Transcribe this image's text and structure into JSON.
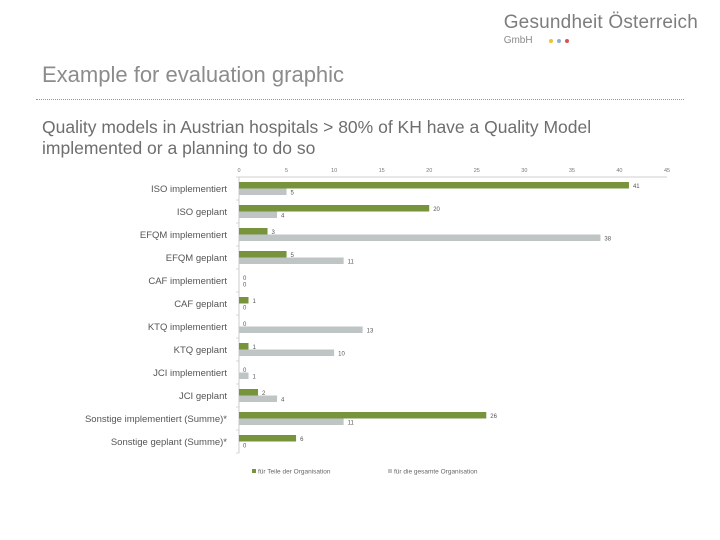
{
  "logo": {
    "name": "Gesundheit Österreich",
    "sub": "GmbH",
    "dot_colors": [
      "#f2c12e",
      "#8ab0d8",
      "#d9534f"
    ]
  },
  "slide": {
    "title": "Example for evaluation graphic",
    "subtitle": "Quality models in Austrian hospitals > 80% of KH have a Quality Model implemented or a planning to do so"
  },
  "chart_data": {
    "type": "bar",
    "orientation": "horizontal",
    "categories": [
      "ISO implementiert",
      "ISO geplant",
      "EFQM implementiert",
      "EFQM geplant",
      "CAF implementiert",
      "CAF geplant",
      "KTQ implementiert",
      "KTQ geplant",
      "JCI implementiert",
      "JCI geplant",
      "Sonstige implementiert (Summe)*",
      "Sonstige geplant (Summe)*"
    ],
    "series": [
      {
        "name": "für Teile der Organisation",
        "color": "#77933c",
        "values": [
          41,
          20,
          3,
          5,
          0,
          1,
          0,
          1,
          0,
          2,
          26,
          6
        ]
      },
      {
        "name": "für die gesamte Organisation",
        "color": "#bfc4c4",
        "values": [
          5,
          4,
          38,
          11,
          0,
          0,
          13,
          10,
          1,
          4,
          11,
          0
        ]
      }
    ],
    "xlim": [
      0,
      45
    ],
    "xticks": [
      0,
      5,
      10,
      15,
      20,
      25,
      30,
      35,
      40,
      45
    ],
    "xtick_labels": [
      "0",
      "5",
      "10",
      "15",
      "20",
      "25",
      "30",
      "35",
      "40",
      "45"
    ],
    "axis_position": "top",
    "legend_position": "bottom",
    "grid": false
  }
}
